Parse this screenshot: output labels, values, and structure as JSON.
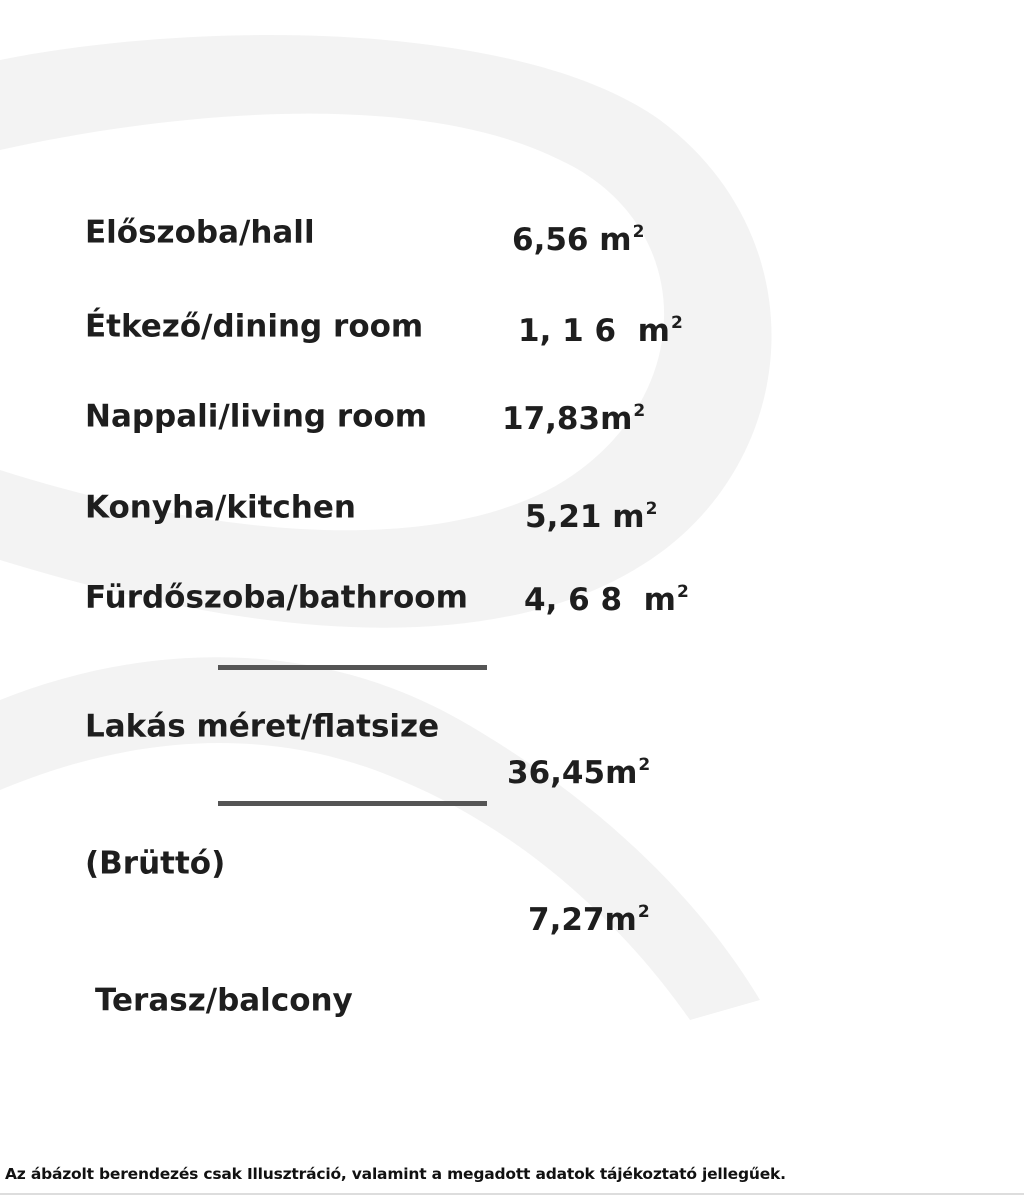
{
  "rooms": [
    {
      "label": "Előszoba/hall",
      "value": "6,56",
      "unit": "m"
    },
    {
      "label": "Étkező/dining room",
      "value": "1, 1 6",
      "unit": "m"
    },
    {
      "label": "Nappali/living room",
      "value": "17,83",
      "unit": "m"
    },
    {
      "label": "Konyha/kitchen",
      "value": "5,21",
      "unit": "m"
    },
    {
      "label": "Fürdőszoba/bathroom",
      "value": "4, 6 8",
      "unit": "m"
    }
  ],
  "total": {
    "label": "Lakás méret/flatsize",
    "value": "36,45",
    "unit": "m"
  },
  "gross_label": "(Brüttó)",
  "balcony": {
    "label": "Terasz/balcony",
    "value": "7,27",
    "unit": "m"
  },
  "unit_exponent": "2",
  "footer": "Az ábázolt berendezés csak Illusztráció, valamint a megadott adatok tájékoztató jellegűek.",
  "colors": {
    "text": "#1e1e1e",
    "rule": "#555555",
    "watermark": "#f2f2f2"
  }
}
